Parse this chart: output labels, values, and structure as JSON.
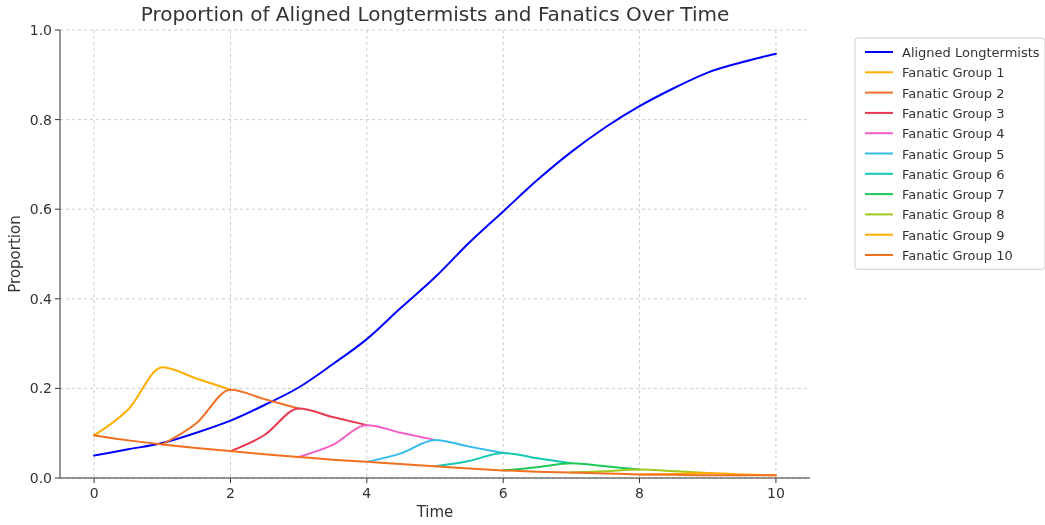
{
  "chart_data": {
    "type": "line",
    "title": "Proportion of Aligned Longtermists and Fanatics Over Time",
    "xlabel": "Time",
    "ylabel": "Proportion",
    "x": [
      0,
      0.5,
      1,
      1.5,
      2,
      2.5,
      3,
      3.5,
      4,
      4.5,
      5,
      5.5,
      6,
      6.5,
      7,
      7.5,
      8,
      8.5,
      9,
      9.5,
      10
    ],
    "series": [
      {
        "name": "Aligned Longtermists",
        "color": "#0000ff",
        "values": [
          0.05,
          0.064,
          0.078,
          0.101,
          0.128,
          0.163,
          0.202,
          0.254,
          0.31,
          0.38,
          0.448,
          0.525,
          0.595,
          0.665,
          0.728,
          0.783,
          0.83,
          0.87,
          0.905,
          0.928,
          0.947
        ]
      },
      {
        "name": "Fanatic Group 1",
        "color": "#ffad00",
        "values": [
          0.095,
          0.153,
          0.247,
          0.222,
          0.197,
          null,
          null,
          null,
          null,
          null,
          null,
          null,
          null,
          null,
          null,
          null,
          null,
          null,
          null,
          null,
          null
        ]
      },
      {
        "name": "Fanatic Group 2",
        "color": "#f07028",
        "values": [
          null,
          null,
          0.075,
          0.122,
          0.197,
          0.176,
          0.155,
          null,
          null,
          null,
          null,
          null,
          null,
          null,
          null,
          null,
          null,
          null,
          null,
          null,
          null
        ]
      },
      {
        "name": "Fanatic Group 3",
        "color": "#e8384f",
        "values": [
          null,
          null,
          null,
          null,
          0.06,
          0.096,
          0.155,
          0.136,
          0.118,
          null,
          null,
          null,
          null,
          null,
          null,
          null,
          null,
          null,
          null,
          null,
          null
        ]
      },
      {
        "name": "Fanatic Group 4",
        "color": "#f45fc4",
        "values": [
          null,
          null,
          null,
          null,
          null,
          null,
          0.047,
          0.074,
          0.118,
          0.101,
          0.085,
          null,
          null,
          null,
          null,
          null,
          null,
          null,
          null,
          null,
          null
        ]
      },
      {
        "name": "Fanatic Group 5",
        "color": "#33bbee",
        "values": [
          null,
          null,
          null,
          null,
          null,
          null,
          null,
          null,
          0.036,
          0.055,
          0.085,
          0.07,
          0.056,
          null,
          null,
          null,
          null,
          null,
          null,
          null,
          null
        ]
      },
      {
        "name": "Fanatic Group 6",
        "color": "#14c8b4",
        "values": [
          null,
          null,
          null,
          null,
          null,
          null,
          null,
          null,
          null,
          null,
          0.026,
          0.038,
          0.056,
          0.044,
          0.033,
          null,
          null,
          null,
          null,
          null,
          null
        ]
      },
      {
        "name": "Fanatic Group 7",
        "color": "#1ec85a",
        "values": [
          null,
          null,
          null,
          null,
          null,
          null,
          null,
          null,
          null,
          null,
          null,
          null,
          0.017,
          0.024,
          0.033,
          0.026,
          0.019,
          null,
          null,
          null,
          null
        ]
      },
      {
        "name": "Fanatic Group 8",
        "color": "#a0c81e",
        "values": [
          null,
          null,
          null,
          null,
          null,
          null,
          null,
          null,
          null,
          null,
          null,
          null,
          null,
          null,
          0.012,
          0.015,
          0.019,
          0.015,
          0.011,
          null,
          null
        ]
      },
      {
        "name": "Fanatic Group 9",
        "color": "#ffad00",
        "values": [
          null,
          null,
          null,
          null,
          null,
          null,
          null,
          null,
          null,
          null,
          null,
          null,
          null,
          null,
          null,
          null,
          0.008,
          0.009,
          0.011,
          0.008,
          0.006
        ]
      },
      {
        "name": "Fanatic Group 10",
        "color": "#f07020",
        "values": [
          0.095,
          0.084,
          0.075,
          0.067,
          0.06,
          0.053,
          0.047,
          0.041,
          0.036,
          0.031,
          0.026,
          0.021,
          0.017,
          0.014,
          0.012,
          0.01,
          0.008,
          0.007,
          0.006,
          0.006,
          0.006
        ]
      }
    ],
    "xlim": [
      -0.5,
      10.5
    ],
    "xticks": [
      0,
      2,
      4,
      6,
      8,
      10
    ],
    "ylim": [
      0,
      1
    ],
    "yticks": [
      {
        "value": 0,
        "label": "0.0"
      },
      {
        "value": 0.2,
        "label": "0.2"
      },
      {
        "value": 0.4,
        "label": "0.4"
      },
      {
        "value": 0.6,
        "label": "0.6"
      },
      {
        "value": 0.8,
        "label": "0.8"
      },
      {
        "value": 1,
        "label": "1.0"
      }
    ],
    "grid": true,
    "legend": "top right",
    "line_style": "solid",
    "marker": "none"
  }
}
